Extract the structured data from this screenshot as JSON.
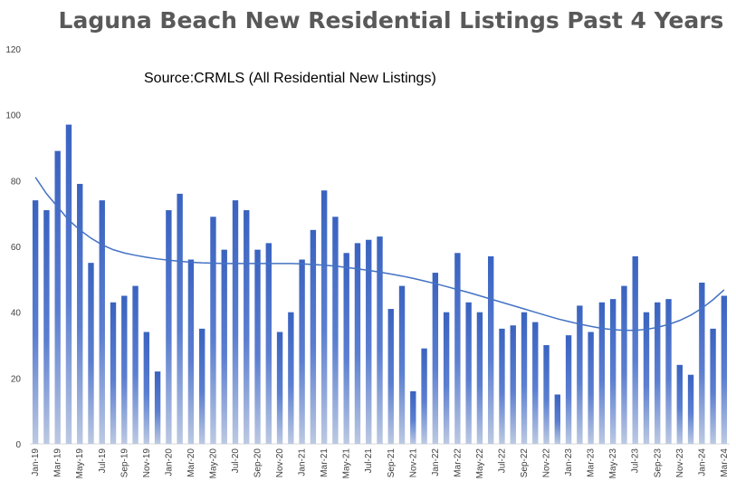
{
  "chart_data": {
    "type": "bar",
    "title": "Laguna Beach New Residential Listings Past 4 Years",
    "subtitle": "Source:CRMLS (All Residential New Listings)",
    "xlabel": "",
    "ylabel": "",
    "ylim": [
      0,
      120
    ],
    "yticks": [
      0,
      20,
      40,
      60,
      80,
      100,
      120
    ],
    "grid": false,
    "legend": "none",
    "categories": [
      "Jan-19",
      "Feb-19",
      "Mar-19",
      "Apr-19",
      "May-19",
      "Jun-19",
      "Jul-19",
      "Aug-19",
      "Sep-19",
      "Oct-19",
      "Nov-19",
      "Dec-19",
      "Jan-20",
      "Feb-20",
      "Mar-20",
      "Apr-20",
      "May-20",
      "Jun-20",
      "Jul-20",
      "Aug-20",
      "Sep-20",
      "Oct-20",
      "Nov-20",
      "Dec-20",
      "Jan-21",
      "Feb-21",
      "Mar-21",
      "Apr-21",
      "May-21",
      "Jun-21",
      "Jul-21",
      "Aug-21",
      "Sep-21",
      "Oct-21",
      "Nov-21",
      "Dec-21",
      "Jan-22",
      "Feb-22",
      "Mar-22",
      "Apr-22",
      "May-22",
      "Jun-22",
      "Jul-22",
      "Aug-22",
      "Sep-22",
      "Oct-22",
      "Nov-22",
      "Dec-22",
      "Jan-23",
      "Feb-23",
      "Mar-23",
      "Apr-23",
      "May-23",
      "Jun-23",
      "Jul-23",
      "Aug-23",
      "Sep-23",
      "Oct-23",
      "Nov-23",
      "Dec-23",
      "Jan-24",
      "Feb-24",
      "Mar-24"
    ],
    "values": [
      74,
      71,
      89,
      97,
      79,
      55,
      74,
      43,
      45,
      48,
      34,
      22,
      71,
      76,
      56,
      35,
      69,
      59,
      74,
      71,
      59,
      61,
      34,
      40,
      56,
      65,
      77,
      69,
      58,
      61,
      62,
      63,
      41,
      48,
      16,
      29,
      52,
      40,
      58,
      43,
      40,
      57,
      35,
      36,
      40,
      37,
      30,
      15,
      33,
      42,
      34,
      43,
      44,
      48,
      57,
      40,
      43,
      44,
      24,
      21,
      49,
      35,
      45
    ],
    "trendline": {
      "type": "polynomial",
      "values": [
        81,
        76,
        72,
        68,
        65,
        62.5,
        60.5,
        59,
        58,
        57.3,
        56.7,
        56.2,
        55.8,
        55.5,
        55.2,
        55,
        54.9,
        54.8,
        54.8,
        54.8,
        54.8,
        54.8,
        54.8,
        54.8,
        54.7,
        54.5,
        54.3,
        54,
        53.6,
        53.2,
        52.7,
        52.2,
        51.6,
        51,
        50.3,
        49.5,
        48.7,
        47.8,
        46.9,
        46,
        45,
        44,
        43,
        42,
        41,
        40,
        39,
        38,
        37.2,
        36.4,
        35.7,
        35.1,
        34.7,
        34.5,
        34.5,
        34.8,
        35.4,
        36.3,
        37.5,
        39.1,
        41.2,
        43.8,
        46.8
      ]
    },
    "colors": {
      "bar_top": "#3a63c0",
      "bar_bottom": "#bcc9e2",
      "trendline": "#4472c4",
      "axis": "#d9d9d9"
    }
  }
}
